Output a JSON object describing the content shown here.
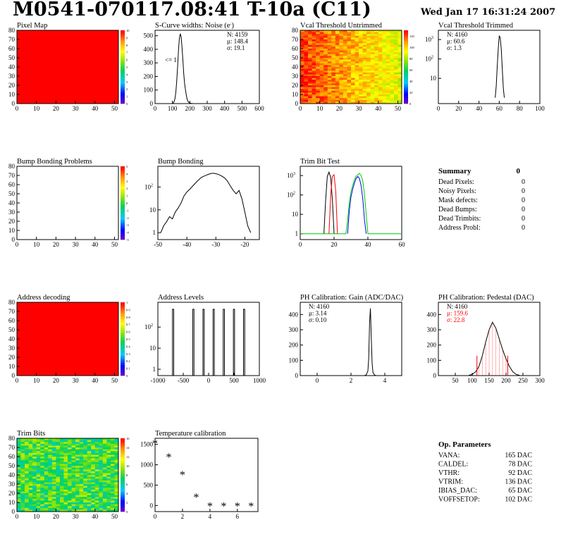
{
  "title": "M0541-070117.08:41 T-10a (C11)",
  "date": "Wed Jan 17 16:31:24 2007",
  "summary": {
    "heading": "Summary",
    "total": "0",
    "rows": [
      {
        "label": "Dead Pixels:",
        "value": "0"
      },
      {
        "label": "Noisy Pixels:",
        "value": "0"
      },
      {
        "label": "Mask defects:",
        "value": "0"
      },
      {
        "label": "Dead Bumps:",
        "value": "0"
      },
      {
        "label": "Dead Trimbits:",
        "value": "0"
      },
      {
        "label": "Address Probl:",
        "value": "0"
      }
    ]
  },
  "op_parameters": {
    "heading": "Op. Parameters",
    "rows": [
      {
        "label": "VANA:",
        "value": "165 DAC"
      },
      {
        "label": "CALDEL:",
        "value": "78 DAC"
      },
      {
        "label": "VTHR:",
        "value": "92 DAC"
      },
      {
        "label": "VTRIM:",
        "value": "136 DAC"
      },
      {
        "label": "IBIAS_DAC:",
        "value": "65 DAC"
      },
      {
        "label": "VOFFSETOP:",
        "value": "102 DAC"
      }
    ]
  },
  "colors": {
    "line": "#000000",
    "red": "#ff0000",
    "blue": "#0000ff",
    "green": "#00cc00"
  },
  "chart_data": [
    {
      "id": "pixel-map",
      "type": "heatmap",
      "title": "Pixel Map",
      "xlim": [
        0,
        52
      ],
      "ylim": [
        0,
        80
      ],
      "xticks": [
        0,
        10,
        20,
        30,
        40,
        50
      ],
      "yticks": [
        0,
        10,
        20,
        30,
        40,
        50,
        60,
        70,
        80
      ],
      "zlim": [
        0,
        10
      ],
      "zticks": [
        0,
        1,
        2,
        3,
        4,
        5,
        6,
        7,
        8,
        9,
        10
      ],
      "fill": "uniform",
      "fill_value": 10
    },
    {
      "id": "noise",
      "type": "line",
      "title": "S-Curve widths: Noise (e",
      "xlim": [
        0,
        600
      ],
      "ylim": [
        0,
        540
      ],
      "xticks": [
        0,
        100,
        200,
        300,
        400,
        500,
        600
      ],
      "yticks": [
        0,
        100,
        200,
        300,
        400,
        500
      ],
      "stats": [
        "N: 4159",
        "μ: 148.4",
        "σ: 19.1"
      ],
      "annotation": "<= 1",
      "series": [
        {
          "color": "black",
          "x": [
            100,
            105,
            110,
            115,
            120,
            125,
            130,
            135,
            140,
            145,
            150,
            155,
            160,
            165,
            170,
            175,
            180,
            185,
            190,
            195,
            200,
            210,
            220
          ],
          "y": [
            0,
            5,
            15,
            40,
            90,
            170,
            280,
            400,
            480,
            515,
            490,
            420,
            320,
            220,
            150,
            100,
            60,
            30,
            15,
            8,
            3,
            1,
            0
          ]
        }
      ]
    },
    {
      "id": "vcal-untrimmed",
      "type": "heatmap",
      "title": "Vcal Threshold Untrimmed",
      "xlim": [
        0,
        52
      ],
      "ylim": [
        0,
        80
      ],
      "xticks": [
        0,
        10,
        20,
        30,
        40,
        50
      ],
      "yticks": [
        0,
        10,
        20,
        30,
        40,
        50,
        60,
        70,
        80
      ],
      "zlim": [
        0,
        130
      ],
      "zticks": [
        0,
        20,
        40,
        60,
        80,
        100,
        120
      ],
      "fill": "gradient-x",
      "fill_range": [
        82,
        108
      ]
    },
    {
      "id": "vcal-trimmed",
      "type": "line",
      "title": "Vcal Threshold Trimmed",
      "log_y": true,
      "xlim": [
        0,
        100
      ],
      "ylim": [
        0.5,
        3000
      ],
      "xticks": [
        0,
        20,
        40,
        60,
        80,
        100
      ],
      "yticks": [
        10,
        100,
        1000
      ],
      "stats": [
        "N: 4160",
        "μ: 60.6",
        "σ: 1.3"
      ],
      "series": [
        {
          "color": "black",
          "x": [
            56,
            57,
            58,
            59,
            60,
            61,
            62,
            63,
            64,
            65
          ],
          "y": [
            1,
            4,
            40,
            350,
            1600,
            1200,
            300,
            30,
            3,
            1
          ]
        }
      ]
    },
    {
      "id": "bump-problems",
      "type": "heatmap",
      "title": "Bump Bonding Problems",
      "xlim": [
        0,
        52
      ],
      "ylim": [
        0,
        80
      ],
      "xticks": [
        0,
        10,
        20,
        30,
        40,
        50
      ],
      "yticks": [
        0,
        10,
        20,
        30,
        40,
        50,
        60,
        70,
        80
      ],
      "zlim": [
        -5,
        5
      ],
      "zticks": [
        -5,
        -4,
        -3,
        -2,
        -1,
        0,
        1,
        2,
        3,
        4,
        5
      ],
      "fill": "empty"
    },
    {
      "id": "bump-bonding",
      "type": "line",
      "title": "Bump Bonding",
      "log_y": true,
      "xlim": [
        -50,
        -15
      ],
      "ylim": [
        0.5,
        800
      ],
      "xticks": [
        -50,
        -40,
        -30,
        -20
      ],
      "yticks": [
        1,
        10,
        100
      ],
      "series": [
        {
          "color": "black",
          "x": [
            -49,
            -48,
            -47,
            -46,
            -45,
            -44,
            -43,
            -42,
            -41,
            -40,
            -39,
            -38,
            -37,
            -36,
            -35,
            -34,
            -33,
            -32,
            -31,
            -30,
            -29,
            -28,
            -27,
            -26,
            -25,
            -24,
            -23,
            -22,
            -21,
            -20,
            -19,
            -18
          ],
          "y": [
            1,
            2,
            3,
            5,
            4,
            8,
            12,
            20,
            40,
            60,
            80,
            110,
            150,
            200,
            260,
            300,
            340,
            380,
            400,
            380,
            350,
            300,
            250,
            180,
            110,
            70,
            50,
            70,
            30,
            8,
            2,
            1
          ]
        }
      ]
    },
    {
      "id": "trim-bit-test",
      "type": "line",
      "title": "Trim Bit Test",
      "log_y": true,
      "xlim": [
        0,
        60
      ],
      "ylim": [
        0.5,
        3000
      ],
      "xticks": [
        0,
        20,
        40,
        60
      ],
      "yticks": [
        1,
        10,
        100,
        1000
      ],
      "series": [
        {
          "color": "black",
          "x": [
            14,
            15,
            16,
            17,
            18,
            19,
            20
          ],
          "y": [
            1,
            50,
            900,
            1500,
            800,
            60,
            1
          ]
        },
        {
          "color": "red",
          "x": [
            17,
            18,
            19,
            20,
            21,
            22
          ],
          "y": [
            1,
            100,
            900,
            1100,
            150,
            1
          ]
        },
        {
          "color": "blue",
          "x": [
            28,
            29,
            30,
            31,
            32,
            33,
            34,
            35,
            36,
            37,
            38,
            39
          ],
          "y": [
            1,
            15,
            80,
            200,
            400,
            700,
            900,
            700,
            300,
            60,
            5,
            1
          ]
        },
        {
          "color": "green",
          "x": [
            0,
            27,
            28,
            29,
            30,
            31,
            32,
            33,
            34,
            35,
            36,
            37,
            38,
            39,
            40,
            60
          ],
          "y": [
            1,
            1,
            5,
            40,
            150,
            300,
            600,
            900,
            1100,
            1300,
            1000,
            500,
            100,
            10,
            1,
            1
          ]
        }
      ]
    },
    {
      "id": "address-decoding",
      "type": "heatmap",
      "title": "Address decoding",
      "xlim": [
        0,
        52
      ],
      "ylim": [
        0,
        80
      ],
      "xticks": [
        0,
        10,
        20,
        30,
        40,
        50
      ],
      "yticks": [
        0,
        10,
        20,
        30,
        40,
        50,
        60,
        70,
        80
      ],
      "zlim": [
        0,
        1
      ],
      "zticks": [
        0,
        0.1,
        0.2,
        0.3,
        0.4,
        0.5,
        0.6,
        0.7,
        0.8,
        0.9,
        1
      ],
      "fill": "uniform",
      "fill_value": 1
    },
    {
      "id": "address-levels",
      "type": "line",
      "title": "Address Levels",
      "log_y": true,
      "xlim": [
        -1000,
        1000
      ],
      "ylim": [
        0.5,
        1500
      ],
      "xticks": [
        -1000,
        -500,
        0,
        500,
        1000
      ],
      "yticks": [
        1,
        10,
        100
      ],
      "spikes": [
        -700,
        -300,
        -100,
        100,
        300,
        500,
        700
      ],
      "spike_height": 700
    },
    {
      "id": "ph-gain",
      "type": "line",
      "title": "PH Calibration: Gain (ADC/DAC)",
      "xlim": [
        -1,
        5
      ],
      "ylim": [
        0,
        480
      ],
      "xticks": [
        0,
        2,
        4
      ],
      "yticks": [
        0,
        100,
        200,
        300,
        400
      ],
      "stats": [
        "N: 4160",
        "μ: 3.14",
        "σ: 0.10"
      ],
      "series": [
        {
          "color": "black",
          "x": [
            2.8,
            2.9,
            3.0,
            3.05,
            3.1,
            3.15,
            3.2,
            3.25,
            3.3,
            3.4,
            3.5
          ],
          "y": [
            0,
            5,
            30,
            120,
            350,
            440,
            250,
            80,
            20,
            3,
            0
          ]
        }
      ]
    },
    {
      "id": "ph-pedestal",
      "type": "line",
      "title": "PH Calibration: Pedestal (DAC)",
      "xlim": [
        0,
        300
      ],
      "ylim": [
        0,
        480
      ],
      "xticks": [
        50,
        100,
        150,
        200,
        250,
        300
      ],
      "yticks": [
        0,
        100,
        200,
        300,
        400
      ],
      "stats": [
        "N: 4160",
        "μ: 159.6",
        "σ: 22.8"
      ],
      "stats_colors": [
        "black",
        "red",
        "red"
      ],
      "markers": [
        114,
        205
      ],
      "series": [
        {
          "color": "black",
          "x": [
            90,
            100,
            110,
            120,
            130,
            140,
            150,
            160,
            170,
            180,
            190,
            200,
            210,
            220,
            230,
            240
          ],
          "y": [
            2,
            8,
            25,
            60,
            130,
            220,
            300,
            350,
            310,
            240,
            170,
            110,
            60,
            25,
            8,
            2
          ]
        }
      ]
    },
    {
      "id": "trim-bits",
      "type": "heatmap",
      "title": "Trim Bits",
      "xlim": [
        0,
        52
      ],
      "ylim": [
        0,
        80
      ],
      "xticks": [
        0,
        10,
        20,
        30,
        40,
        50
      ],
      "yticks": [
        0,
        10,
        20,
        30,
        40,
        50,
        60,
        70,
        80
      ],
      "zlim": [
        0,
        16
      ],
      "zticks": [
        0,
        2,
        4,
        6,
        8,
        10,
        12,
        14,
        16
      ],
      "fill": "noise",
      "fill_range": [
        5,
        10
      ]
    },
    {
      "id": "temperature",
      "type": "scatter",
      "title": "Temperature calibration",
      "xlim": [
        0,
        7.5
      ],
      "ylim": [
        -150,
        1650
      ],
      "xticks": [
        0,
        2,
        4,
        6
      ],
      "yticks": [
        0,
        500,
        1000,
        1500
      ],
      "x": [
        0,
        1,
        2,
        3,
        4,
        5,
        6,
        7
      ],
      "y": [
        1520,
        1180,
        750,
        200,
        -20,
        -20,
        -20,
        -20
      ]
    }
  ]
}
